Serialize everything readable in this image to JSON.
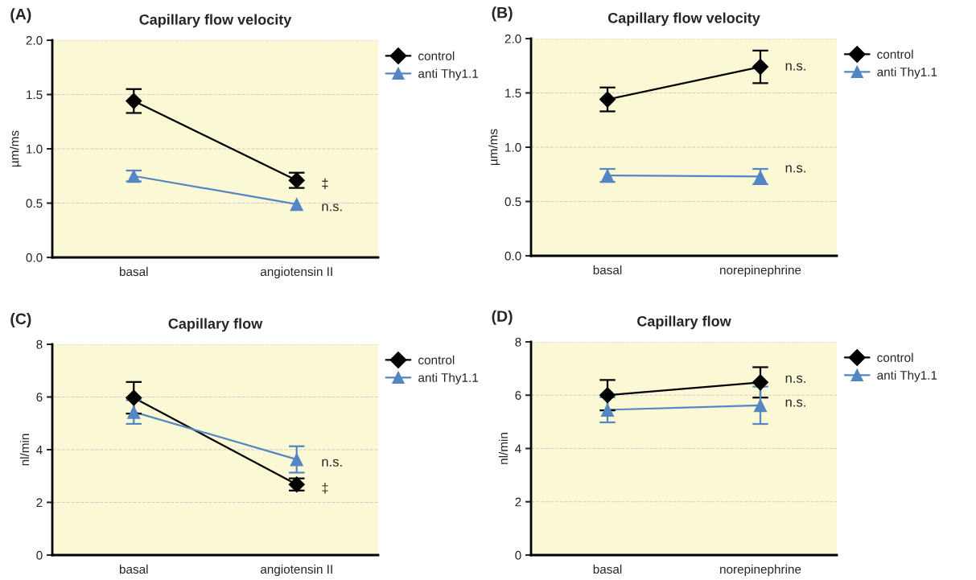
{
  "chart_data": [
    {
      "type": "line",
      "title": "Capillary flow velocity",
      "ylabel": "µm/ms",
      "categories": [
        "basal",
        "angiotensin II"
      ],
      "ylim": [
        0,
        2
      ],
      "yticks": [
        {
          "value": 0,
          "label": "0.0"
        },
        {
          "value": 0.5,
          "label": "0.5"
        },
        {
          "value": 1,
          "label": "1.0"
        },
        {
          "value": 1.5,
          "label": "1.5"
        },
        {
          "value": 2,
          "label": "2.0"
        }
      ],
      "grid": "y",
      "legend": "right",
      "series": [
        {
          "name": "control",
          "color": "#000000",
          "marker": "diamond",
          "values": [
            1.44,
            0.71
          ],
          "errors": [
            0.11,
            0.07
          ]
        },
        {
          "name": "anti Thy1.1",
          "color": "#5486c3",
          "marker": "triangle",
          "values": [
            0.75,
            0.49
          ],
          "errors": [
            0.05,
            null
          ]
        }
      ],
      "annotations": [
        "(A)",
        {
          "text": "‡",
          "x": "angiotensin II",
          "y": 0.67
        },
        {
          "text": "n.s.",
          "x": "angiotensin II",
          "y": 0.46
        }
      ]
    },
    {
      "type": "line",
      "title": "Capillary flow velocity",
      "ylabel": "µm/ms",
      "categories": [
        "basal",
        "norepinephrine"
      ],
      "ylim": [
        0,
        2
      ],
      "yticks": [
        {
          "value": 0,
          "label": "0.0"
        },
        {
          "value": 0.5,
          "label": "0.5"
        },
        {
          "value": 1,
          "label": "1.0"
        },
        {
          "value": 1.5,
          "label": "1.5"
        },
        {
          "value": 2,
          "label": "2.0"
        }
      ],
      "grid": "y",
      "legend": "right",
      "series": [
        {
          "name": "control",
          "color": "#000000",
          "marker": "diamond",
          "values": [
            1.44,
            1.74
          ],
          "errors": [
            0.11,
            0.15
          ]
        },
        {
          "name": "anti Thy1.1",
          "color": "#5486c3",
          "marker": "triangle",
          "values": [
            0.74,
            0.73
          ],
          "errors": [
            0.06,
            0.07
          ]
        }
      ],
      "annotations": [
        "(B)",
        {
          "text": "n.s.",
          "x": "norepinephrine",
          "y": 1.74
        },
        {
          "text": "n.s.",
          "x": "norepinephrine",
          "y": 0.8
        }
      ]
    },
    {
      "type": "line",
      "title": "Capillary flow",
      "ylabel": "nl/min",
      "categories": [
        "basal",
        "angiotensin II"
      ],
      "ylim": [
        0,
        8
      ],
      "yticks": [
        0,
        2,
        4,
        6,
        8
      ],
      "grid": "y",
      "legend": "right",
      "series": [
        {
          "name": "control",
          "color": "#000000",
          "marker": "diamond",
          "values": [
            5.97,
            2.68
          ],
          "errors": [
            0.6,
            0.23
          ]
        },
        {
          "name": "anti Thy1.1",
          "color": "#5486c3",
          "marker": "triangle",
          "values": [
            5.43,
            3.63
          ],
          "errors": [
            0.45,
            0.5
          ]
        }
      ],
      "annotations": [
        "(C)",
        {
          "text": "n.s.",
          "x": "angiotensin II",
          "y": 3.5
        },
        {
          "text": "‡",
          "x": "angiotensin II",
          "y": 2.5
        }
      ]
    },
    {
      "type": "line",
      "title": "Capillary flow",
      "ylabel": "nl/min",
      "categories": [
        "basal",
        "norepinephrine"
      ],
      "ylim": [
        0,
        8
      ],
      "yticks": [
        0,
        2,
        4,
        6,
        8
      ],
      "grid": "y",
      "legend": "right",
      "series": [
        {
          "name": "control",
          "color": "#000000",
          "marker": "diamond",
          "values": [
            6.0,
            6.48
          ],
          "errors": [
            0.57,
            0.57
          ]
        },
        {
          "name": "anti Thy1.1",
          "color": "#5486c3",
          "marker": "triangle",
          "values": [
            5.45,
            5.62
          ],
          "errors": [
            0.47,
            0.7
          ]
        }
      ],
      "annotations": [
        "(D)",
        {
          "text": "n.s.",
          "x": "norepinephrine",
          "y": 6.6
        },
        {
          "text": "n.s.",
          "x": "norepinephrine",
          "y": 5.7
        }
      ]
    }
  ]
}
